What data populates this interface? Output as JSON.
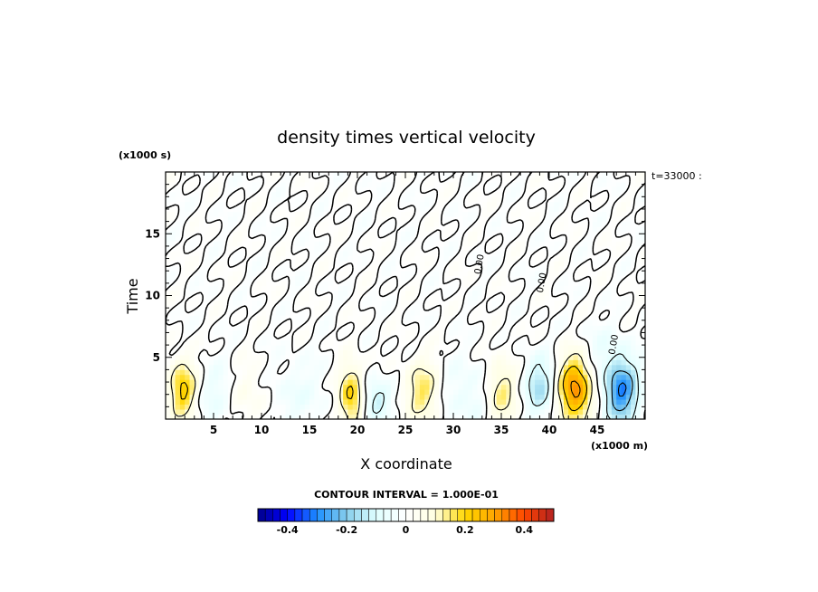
{
  "chart_data": {
    "type": "heatmap",
    "title": "density times vertical velocity",
    "xlabel": "X coordinate",
    "ylabel": "Time",
    "x_unit_label": "(x1000 m)",
    "y_unit_label": "(x1000 s)",
    "xlim": [
      0,
      50
    ],
    "ylim": [
      0,
      20
    ],
    "x_ticks": [
      5,
      10,
      15,
      20,
      25,
      30,
      35,
      40,
      45
    ],
    "x_tick_labels": [
      "5",
      "10",
      "15",
      "20",
      "25",
      "30",
      "35",
      "40",
      "45"
    ],
    "y_ticks": [
      5,
      10,
      15
    ],
    "y_tick_labels": [
      "5",
      "10",
      "15"
    ],
    "annotation": "t=33000 :",
    "contour_interval_text": "CONTOUR INTERVAL = 1.000E-01",
    "contour_labels": [
      "0.00",
      "0.00",
      "0.00"
    ],
    "colorbar": {
      "min": -0.5,
      "max": 0.5,
      "n_bins": 40,
      "ticks": [
        -0.4,
        -0.2,
        0,
        0.2,
        0.4
      ],
      "tick_labels": [
        "-0.4",
        "-0.2",
        "0",
        "0.2",
        "0.4"
      ],
      "colors": [
        "#00008b",
        "#0000ff",
        "#1e90ff",
        "#87ceeb",
        "#e0ffff",
        "#ffffff",
        "#ffffe0",
        "#ffd700",
        "#ffa500",
        "#ff4500",
        "#b22222"
      ]
    },
    "features": [
      {
        "x": 1.8,
        "t": 2.4,
        "amp": 0.22,
        "sx": 1.0,
        "st": 1.6
      },
      {
        "x": 5.5,
        "t": 2.0,
        "amp": -0.07,
        "sx": 1.5,
        "st": 1.8
      },
      {
        "x": 8.5,
        "t": 2.0,
        "amp": 0.06,
        "sx": 1.8,
        "st": 1.8
      },
      {
        "x": 13.5,
        "t": 2.0,
        "amp": -0.05,
        "sx": 2.5,
        "st": 2.0
      },
      {
        "x": 19.3,
        "t": 1.9,
        "amp": 0.22,
        "sx": 0.9,
        "st": 1.7
      },
      {
        "x": 22.0,
        "t": 1.5,
        "amp": -0.13,
        "sx": 1.0,
        "st": 1.2
      },
      {
        "x": 26.8,
        "t": 2.3,
        "amp": 0.16,
        "sx": 1.2,
        "st": 1.7
      },
      {
        "x": 31.5,
        "t": 2.0,
        "amp": -0.06,
        "sx": 2.0,
        "st": 2.0
      },
      {
        "x": 35.0,
        "t": 2.2,
        "amp": 0.15,
        "sx": 1.1,
        "st": 1.8
      },
      {
        "x": 39.0,
        "t": 2.7,
        "amp": -0.16,
        "sx": 1.1,
        "st": 1.6
      },
      {
        "x": 42.7,
        "t": 2.5,
        "amp": 0.33,
        "sx": 1.2,
        "st": 1.9
      },
      {
        "x": 47.5,
        "t": 2.3,
        "amp": -0.3,
        "sx": 1.2,
        "st": 1.8
      },
      {
        "x": 45.0,
        "t": 5.5,
        "amp": -0.05,
        "sx": 2.0,
        "st": 1.5
      }
    ]
  }
}
